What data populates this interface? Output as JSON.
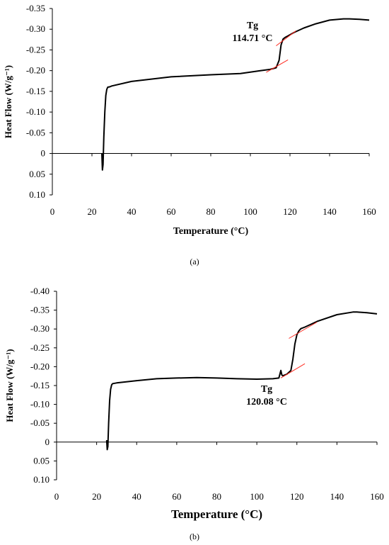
{
  "chart_data": [
    {
      "type": "line",
      "panel": "a",
      "caption": "(a)",
      "xlabel": "Temperature (°C)",
      "ylabel": "Heat Flow  (W/g⁻¹)",
      "xlim": [
        0,
        160
      ],
      "ylim": [
        0.1,
        -0.35
      ],
      "y_inverted": true,
      "x_ticks": [
        0,
        20,
        40,
        60,
        80,
        100,
        120,
        140,
        160
      ],
      "x_tick_labels": [
        "0",
        "20",
        "40",
        "60",
        "80",
        "100",
        "120",
        "140",
        "160"
      ],
      "y_ticks": [
        -0.35,
        -0.3,
        -0.25,
        -0.2,
        -0.15,
        -0.1,
        -0.05,
        0,
        0.05,
        0.1
      ],
      "y_tick_labels": [
        "-0.35",
        "-0.30",
        "-0.25",
        "-0.20",
        "-0.15",
        "-0.10",
        "-0.05",
        "0",
        "0.05",
        "0.10"
      ],
      "grid": false,
      "series": [
        {
          "x": [
            25,
            25.3,
            25.6,
            26,
            26.5,
            27,
            27.5,
            28,
            29,
            30,
            40,
            60,
            80,
            95,
            105,
            110,
            113,
            114.5,
            115.5,
            116.5,
            117.5,
            119,
            122,
            127,
            133,
            140,
            147,
            150,
            155,
            160
          ],
          "y": [
            0.0,
            0.04,
            0.027,
            -0.04,
            -0.1,
            -0.14,
            -0.155,
            -0.16,
            -0.161,
            -0.163,
            -0.174,
            -0.185,
            -0.19,
            -0.193,
            -0.2,
            -0.203,
            -0.207,
            -0.225,
            -0.262,
            -0.276,
            -0.28,
            -0.284,
            -0.292,
            -0.303,
            -0.313,
            -0.322,
            -0.325,
            -0.325,
            -0.324,
            -0.322
          ]
        }
      ],
      "tangents": [
        {
          "x": [
            108,
            119
          ],
          "y": [
            -0.196,
            -0.226
          ]
        },
        {
          "x": [
            113,
            123
          ],
          "y": [
            -0.26,
            -0.296
          ]
        }
      ],
      "annotation": {
        "line1": "Tg",
        "line2": "114.71 °C"
      }
    },
    {
      "type": "line",
      "panel": "b",
      "caption": "(b)",
      "xlabel": "Temperature (°C)",
      "ylabel": "Heat Flow  (W/g⁻¹)",
      "xlim": [
        0,
        160
      ],
      "ylim": [
        0.1,
        -0.4
      ],
      "y_inverted": true,
      "x_ticks": [
        0,
        20,
        40,
        60,
        80,
        100,
        120,
        140,
        160
      ],
      "x_tick_labels": [
        "0",
        "20",
        "40",
        "60",
        "80",
        "100",
        "120",
        "140",
        "160"
      ],
      "y_ticks": [
        -0.4,
        -0.35,
        -0.3,
        -0.25,
        -0.2,
        -0.15,
        -0.1,
        -0.05,
        0,
        0.05,
        0.1
      ],
      "y_tick_labels": [
        "-0.40",
        "-0.35",
        "-0.30",
        "-0.25",
        "-0.20",
        "-0.15",
        "-0.10",
        "-0.05",
        "0",
        "0.05",
        "0.10"
      ],
      "grid": false,
      "series": [
        {
          "x": [
            25,
            25.3,
            25.6,
            26,
            26.5,
            27,
            27.5,
            28,
            30,
            40,
            50,
            60,
            70,
            80,
            90,
            100,
            108,
            111,
            112,
            112.5,
            113,
            115,
            117,
            118,
            119,
            120,
            121,
            122,
            124,
            130,
            140,
            148,
            150,
            155,
            160
          ],
          "y": [
            -0.005,
            0.02,
            0.012,
            -0.05,
            -0.11,
            -0.14,
            -0.152,
            -0.155,
            -0.157,
            -0.163,
            -0.168,
            -0.17,
            -0.171,
            -0.17,
            -0.168,
            -0.167,
            -0.168,
            -0.17,
            -0.19,
            -0.178,
            -0.176,
            -0.18,
            -0.19,
            -0.22,
            -0.26,
            -0.285,
            -0.295,
            -0.301,
            -0.305,
            -0.32,
            -0.338,
            -0.345,
            -0.345,
            -0.343,
            -0.34
          ]
        }
      ],
      "tangents": [
        {
          "x": [
            112,
            124
          ],
          "y": [
            -0.17,
            -0.208
          ]
        },
        {
          "x": [
            116,
            130
          ],
          "y": [
            -0.275,
            -0.318
          ]
        }
      ],
      "annotation": {
        "line1": "Tg",
        "line2": "120.08 °C"
      }
    }
  ],
  "colors": {
    "curve": "#000000",
    "tangent": "#ff2a1f",
    "axis": "#000000"
  }
}
